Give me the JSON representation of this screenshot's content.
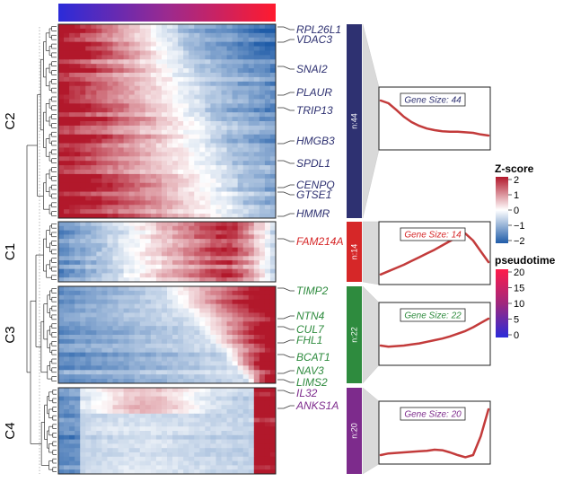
{
  "colors": {
    "heat_low": "#1f5ca8",
    "heat_mid": "#ffffff",
    "heat_high": "#b2182b",
    "pseudotime_low": "#2b2bd9",
    "pseudotime_high": "#ff1a2e",
    "cluster_C2": "#2e3171",
    "cluster_C1": "#d62728",
    "cluster_C3": "#2e8b3e",
    "cluster_C4": "#7d2b8c",
    "trend_line": "#c33b3b"
  },
  "chart_data": {
    "type": "heatmap",
    "row_groups": [
      {
        "name": "C2",
        "n_label": "n:44",
        "n": 44,
        "gene_size_label": "Gene Size: 44",
        "genes": [
          "RPL26L1",
          "VDAC3",
          "SNAI2",
          "PLAUR",
          "TRIP13",
          "HMGB3",
          "SPDL1",
          "CENPQ",
          "GTSE1",
          "HMMR"
        ],
        "trend": [
          0.85,
          0.8,
          0.68,
          0.55,
          0.45,
          0.38,
          0.33,
          0.3,
          0.28,
          0.27,
          0.27,
          0.26,
          0.25,
          0.22,
          0.2
        ]
      },
      {
        "name": "C1",
        "n_label": "n:14",
        "n": 14,
        "gene_size_label": "Gene Size: 14",
        "genes": [
          "FAM214A"
        ],
        "trend": [
          0.12,
          0.18,
          0.24,
          0.3,
          0.37,
          0.44,
          0.51,
          0.58,
          0.66,
          0.74,
          0.82,
          0.88,
          0.75,
          0.55,
          0.35
        ]
      },
      {
        "name": "C3",
        "n_label": "n:22",
        "n": 22,
        "gene_size_label": "Gene Size: 22",
        "genes": [
          "TIMP2",
          "NTN4",
          "CUL7",
          "FHL1",
          "BCAT1",
          "NAV3",
          "LIMS2"
        ],
        "trend": [
          0.3,
          0.28,
          0.29,
          0.3,
          0.32,
          0.34,
          0.37,
          0.4,
          0.43,
          0.47,
          0.52,
          0.57,
          0.64,
          0.72,
          0.8
        ]
      },
      {
        "name": "C4",
        "n_label": "n:20",
        "n": 20,
        "gene_size_label": "Gene Size: 20",
        "genes": [
          "IL32",
          "ANKS1A"
        ],
        "trend": [
          0.1,
          0.13,
          0.14,
          0.15,
          0.16,
          0.17,
          0.18,
          0.2,
          0.19,
          0.15,
          0.1,
          0.06,
          0.1,
          0.45,
          0.95
        ]
      }
    ],
    "legend_zscore": {
      "title": "Z-score",
      "ticks": [
        "2",
        "1",
        "0",
        "−1",
        "−2"
      ],
      "range": [
        -2,
        2
      ]
    },
    "legend_pseudotime": {
      "title": "pseudotime",
      "ticks": [
        "20",
        "15",
        "10",
        "5",
        "0"
      ],
      "range": [
        0,
        20
      ]
    }
  }
}
